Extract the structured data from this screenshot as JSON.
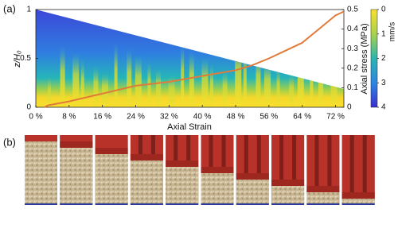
{
  "chart_data": {
    "type": "line",
    "panel_label": "(a)",
    "x_label": "Axial Strain",
    "y_label": "z/H₀",
    "y2_label": "Axial stress (MPa)",
    "colorbar_label": "mm/s",
    "xlim": [
      0,
      74
    ],
    "xticks": [
      {
        "value": 0,
        "label": "0 %"
      },
      {
        "value": 8,
        "label": "8 %"
      },
      {
        "value": 16,
        "label": "16 %"
      },
      {
        "value": 24,
        "label": "24 %"
      },
      {
        "value": 32,
        "label": "32 %"
      },
      {
        "value": 40,
        "label": "40 %"
      },
      {
        "value": 48,
        "label": "48 %"
      },
      {
        "value": 56,
        "label": "56 %"
      },
      {
        "value": 64,
        "label": "64 %"
      },
      {
        "value": 72,
        "label": "72 %"
      }
    ],
    "ylim": [
      0,
      1
    ],
    "yticks": [
      0,
      0.5,
      1
    ],
    "y2lim": [
      0,
      0.5
    ],
    "y2ticks": [
      0,
      0.1,
      0.2,
      0.3,
      0.4,
      0.5
    ],
    "colorbar_lim": [
      0,
      4
    ],
    "colorbar_ticks": [
      0,
      1,
      2,
      3,
      4
    ],
    "x": [
      2,
      3,
      8,
      16,
      24,
      32,
      40,
      48,
      52,
      56,
      60,
      64,
      68,
      72,
      74
    ],
    "series": [
      {
        "color": "#e07b39",
        "axis": "y2",
        "values": [
          0,
          0.01,
          0.03,
          0.07,
          0.11,
          0.13,
          0.16,
          0.19,
          0.215,
          0.25,
          0.29,
          0.33,
          0.4,
          0.47,
          0.49
        ]
      }
    ]
  },
  "panel_b": {
    "label": "(b)"
  }
}
